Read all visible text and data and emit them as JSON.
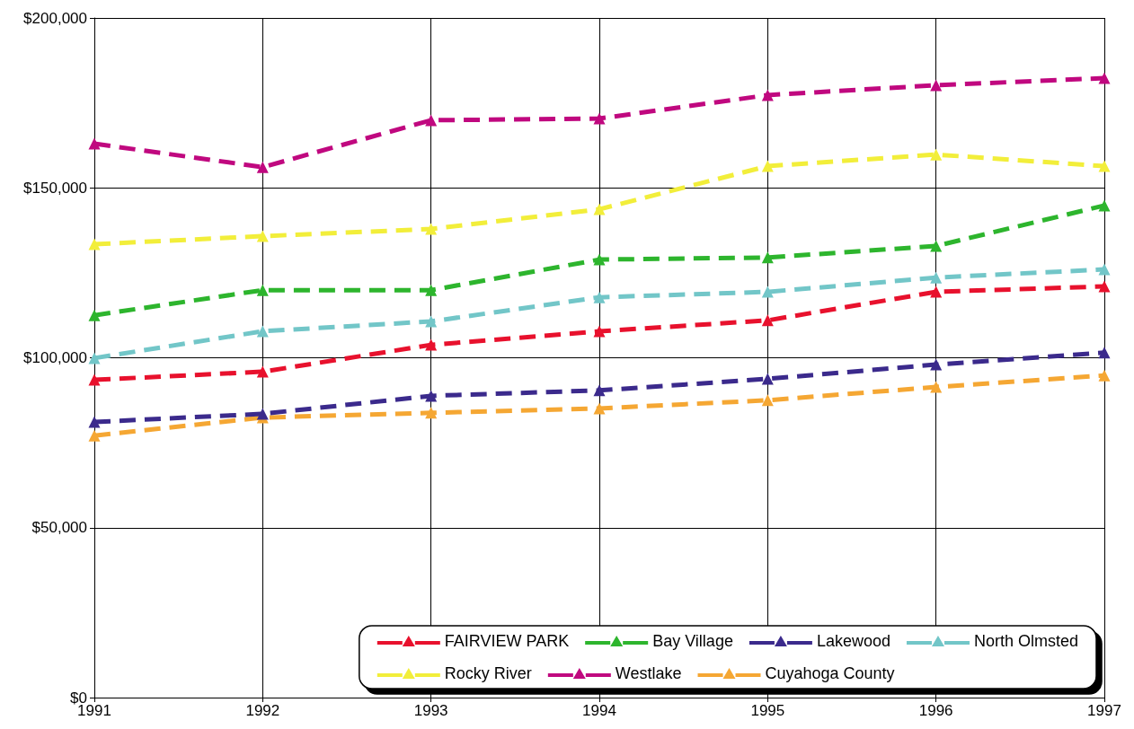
{
  "chart_data": {
    "type": "line",
    "categories": [
      "1991",
      "1992",
      "1993",
      "1994",
      "1995",
      "1996",
      "1997"
    ],
    "series": [
      {
        "name": "FAIRVIEW PARK",
        "color": "#e8112d",
        "values": [
          93500,
          95900,
          103800,
          107800,
          111000,
          119400,
          121000
        ]
      },
      {
        "name": "Bay Village",
        "color": "#2db52d",
        "values": [
          112500,
          119900,
          119900,
          128900,
          129500,
          132900,
          144800
        ]
      },
      {
        "name": "Lakewood",
        "color": "#3b2a8c",
        "values": [
          81100,
          83500,
          88800,
          90400,
          93800,
          98000,
          101500
        ]
      },
      {
        "name": "North Olmsted",
        "color": "#72c6c8",
        "values": [
          99900,
          107800,
          110700,
          117800,
          119400,
          123600,
          126000
        ]
      },
      {
        "name": "Rocky River",
        "color": "#f2ee3a",
        "values": [
          133400,
          135800,
          137900,
          143700,
          156400,
          159800,
          156400
        ]
      },
      {
        "name": "Westlake",
        "color": "#c0087f",
        "values": [
          163000,
          156100,
          169900,
          170400,
          177300,
          180200,
          182300
        ]
      },
      {
        "name": "Cuyahoga County",
        "color": "#f5a733",
        "values": [
          77100,
          82400,
          83800,
          85100,
          87500,
          91400,
          94800
        ]
      }
    ],
    "ylim": [
      0,
      200000
    ],
    "yticks": [
      {
        "value": 0,
        "label": "$0"
      },
      {
        "value": 50000,
        "label": "$50,000"
      },
      {
        "value": 100000,
        "label": "$100,000"
      },
      {
        "value": 150000,
        "label": "$150,000"
      },
      {
        "value": 200000,
        "label": "$200,000"
      }
    ],
    "grid": true,
    "legend": "bottom right",
    "marker": "triangle",
    "line_style": "dashed"
  }
}
